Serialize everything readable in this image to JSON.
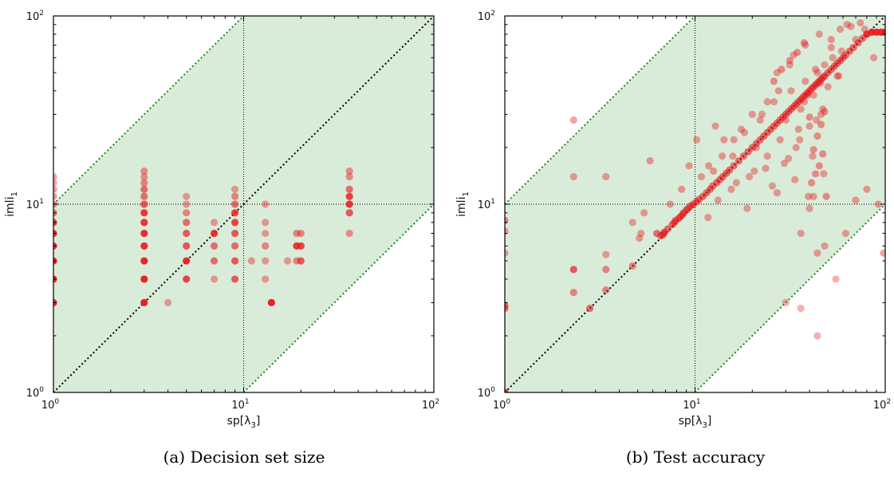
{
  "chart_data": [
    {
      "type": "scatter",
      "caption": "(a) Decision set size",
      "xlabel": "sp[λ3]",
      "ylabel": "imli1",
      "xscale": "log",
      "yscale": "log",
      "xlim": [
        1,
        100
      ],
      "ylim": [
        1,
        100
      ],
      "xticks": [
        "10",
        "10",
        "10"
      ],
      "xtick_exp": [
        "0",
        "1",
        "2"
      ],
      "yticks": [
        "10",
        "10",
        "10"
      ],
      "ytick_exp": [
        "0",
        "1",
        "2"
      ],
      "point_color": "#e8191c",
      "band_color": "#d9ecd9",
      "band_edge_color": "#1a8a1a",
      "x": [
        1,
        1,
        1,
        1,
        1,
        1,
        1,
        1,
        1,
        1,
        1,
        1,
        3,
        3,
        3,
        3,
        3,
        3,
        3,
        3,
        3,
        3,
        3,
        3,
        3,
        4,
        5,
        5,
        5,
        5,
        5,
        5,
        5,
        5,
        7,
        7,
        7,
        7,
        7,
        7,
        9,
        9,
        9,
        9,
        9,
        9,
        9,
        9,
        9,
        11,
        13,
        13,
        13,
        13,
        13,
        13,
        14,
        17,
        19,
        19,
        19,
        19,
        20,
        20,
        20,
        36,
        36,
        36,
        36,
        36,
        36,
        36
      ],
      "y": [
        3,
        4,
        5,
        6,
        7,
        8,
        9,
        10,
        11,
        12,
        13,
        14,
        3,
        4,
        5,
        6,
        7,
        8,
        9,
        10,
        11,
        12,
        13,
        14,
        15,
        3,
        4,
        5,
        6,
        7,
        8,
        9,
        10,
        11,
        4,
        5,
        6,
        7,
        8,
        7,
        4,
        5,
        6,
        7,
        8,
        9,
        10,
        11,
        12,
        5,
        4,
        5,
        6,
        7,
        8,
        10,
        3,
        5,
        5,
        6,
        7,
        6,
        5,
        6,
        7,
        7,
        9,
        10,
        11,
        12,
        14,
        15
      ],
      "alpha": [
        0.95,
        0.95,
        0.95,
        0.9,
        0.9,
        0.85,
        0.6,
        0.5,
        0.45,
        0.45,
        0.4,
        0.4,
        0.95,
        0.95,
        0.95,
        0.9,
        0.9,
        0.85,
        0.85,
        0.7,
        0.6,
        0.6,
        0.5,
        0.45,
        0.45,
        0.4,
        0.8,
        0.9,
        0.7,
        0.7,
        0.6,
        0.5,
        0.4,
        0.4,
        0.4,
        0.6,
        0.6,
        0.5,
        0.4,
        0.7,
        0.7,
        0.7,
        0.6,
        0.7,
        0.8,
        0.8,
        0.6,
        0.5,
        0.4,
        0.4,
        0.4,
        0.4,
        0.5,
        0.4,
        0.4,
        0.4,
        0.95,
        0.4,
        0.5,
        0.7,
        0.5,
        0.5,
        0.7,
        0.8,
        0.5,
        0.45,
        0.7,
        0.85,
        0.8,
        0.6,
        0.45,
        0.45
      ]
    },
    {
      "type": "scatter",
      "caption": "(b) Test accuracy",
      "xlabel": "sp[λ3]",
      "ylabel": "imli1",
      "xscale": "log",
      "yscale": "log",
      "xlim": [
        1,
        100
      ],
      "ylim": [
        1,
        100
      ],
      "xticks": [
        "10",
        "10",
        "10"
      ],
      "xtick_exp": [
        "0",
        "1",
        "2"
      ],
      "yticks": [
        "10",
        "10",
        "10"
      ],
      "ytick_exp": [
        "0",
        "1",
        "2"
      ],
      "point_color": "#e8191c",
      "band_color": "#d9ecd9",
      "band_edge_color": "#1a8a1a",
      "x": [
        1,
        1,
        1,
        1,
        1,
        1,
        2.3,
        2.3,
        2.3,
        2.3,
        2.8,
        3.4,
        3.4,
        3.4,
        3.4,
        4.7,
        4.7,
        5.1,
        5.2,
        5.4,
        6.3,
        6.6,
        6.8,
        6.9,
        7.2,
        7.6,
        7.8,
        7.9,
        8.2,
        8.4,
        8.6,
        8.7,
        9.0,
        9.2,
        9.5,
        9.8,
        10.2,
        10.5,
        11.0,
        11.5,
        12.0,
        12.4,
        13.0,
        13.5,
        14.0,
        14.6,
        15.2,
        16.0,
        17.0,
        18.0,
        19.0,
        20.0,
        21.0,
        22.0,
        23.0,
        24.0,
        25.0,
        26.0,
        27.0,
        28.0,
        29.0,
        30.0,
        31.0,
        32.0,
        33.0,
        34.0,
        35.0,
        36.0,
        37.0,
        38.0,
        39.0,
        40.0,
        41.0,
        42.0,
        43.0,
        44.0,
        45.0,
        46.0,
        47.0,
        48.0,
        50.0,
        52.0,
        54.0,
        56.0,
        58.0,
        60.0,
        62.0,
        65.0,
        68.0,
        72.0,
        76.0,
        80.0,
        85.0,
        90.0,
        95.0,
        100.0,
        11.8,
        12.5,
        14.2,
        15.8,
        17.5,
        19.3,
        21.0,
        22.5,
        24.0,
        26.0,
        28.0,
        30.0,
        32.0,
        34.0,
        36.0,
        38.0,
        40.0,
        42.0,
        44.0,
        46.0,
        48.0,
        50.0,
        53.0,
        56.0,
        59.0,
        8.5,
        9.3,
        10.8,
        12.8,
        13.9,
        16.5,
        18.2,
        20.5,
        22.0,
        25.5,
        27.5,
        29.5,
        31.5,
        33.5,
        35.5,
        37.5,
        39.5,
        41.5,
        43.5,
        45.5,
        47.5,
        5.8,
        7.4,
        10.2,
        11.7,
        13.2,
        15.5,
        18.8,
        23.5,
        27.0,
        31.0,
        35.0,
        39.0,
        43.0,
        47.0,
        52.0,
        57.0,
        63.0,
        70.0,
        78.0,
        87.0,
        36.0,
        42.0,
        44.0,
        48.0,
        40.0,
        30.0,
        36.0,
        44.0,
        55.0,
        62.0,
        70.0,
        80.0,
        92.0,
        98.0,
        16.0,
        20.0,
        24.0,
        27.0,
        33.0,
        38.0,
        45.0,
        52.0,
        58.0,
        66.0,
        74.0,
        41.0,
        43.0,
        45.0,
        47.0,
        49.0,
        42.0,
        44.0,
        46.0,
        48.0,
        40.0,
        26.0,
        28.5,
        31.5,
        34.5,
        37.5
      ],
      "y": [
        1,
        2.8,
        2.9,
        5.5,
        7.2,
        8.2,
        4.5,
        3.4,
        14,
        28,
        2.8,
        3.5,
        4.5,
        5.4,
        14,
        4.7,
        8.0,
        6.6,
        7.0,
        9.0,
        7.0,
        6.8,
        6.9,
        7.1,
        7.4,
        7.8,
        8.0,
        8.2,
        8.4,
        8.6,
        8.8,
        9.0,
        9.3,
        9.5,
        9.8,
        10.0,
        10.3,
        10.6,
        11.0,
        11.5,
        12.0,
        12.5,
        13.0,
        13.5,
        14.0,
        14.6,
        15.2,
        16.0,
        17.0,
        18.0,
        19.0,
        20.0,
        21.0,
        22.0,
        23.0,
        24.0,
        25.0,
        26.0,
        27.0,
        28.0,
        29.0,
        30.0,
        31.0,
        32.0,
        33.0,
        34.0,
        35.0,
        36.0,
        37.0,
        38.0,
        39.0,
        40.0,
        41.0,
        42.0,
        43.0,
        44.0,
        45.0,
        46.0,
        47.0,
        48.0,
        50.0,
        52.0,
        54.0,
        56.0,
        58.0,
        60.0,
        62.0,
        65.0,
        68.0,
        72.0,
        76.0,
        80.0,
        82.0,
        82.0,
        82.0,
        82.0,
        16.0,
        15.0,
        22.0,
        18.0,
        25.0,
        14.0,
        20.0,
        30.0,
        18.0,
        35.0,
        22.0,
        28.0,
        40.0,
        20.0,
        32.0,
        45.0,
        26.0,
        38.0,
        50.0,
        30.0,
        55.0,
        42.0,
        60.0,
        48.0,
        65.0,
        12.0,
        16.0,
        14.0,
        26.0,
        18.0,
        13.0,
        24.0,
        15.0,
        28.0,
        12.5,
        40.0,
        16.5,
        55.0,
        13.5,
        22.0,
        35.0,
        11.0,
        18.0,
        28.0,
        44.0,
        14.5,
        17.0,
        10.0,
        22.0,
        8.5,
        10.5,
        12.0,
        9.5,
        15.5,
        11.5,
        17.5,
        25.0,
        38.0,
        52.0,
        32.0,
        68.0,
        48.0,
        90.0,
        75.0,
        85.0,
        60.0,
        7.0,
        11.0,
        5.5,
        6.0,
        9.5,
        3.0,
        2.8,
        2.0,
        4.0,
        7.0,
        10.5,
        12.0,
        10.0,
        5.5,
        22.0,
        30.0,
        35.0,
        50.0,
        62.0,
        70.0,
        80.0,
        75.0,
        85.0,
        88.0,
        92.0,
        13.0,
        14.5,
        16.0,
        18.5,
        11.0,
        19.5,
        23.0,
        26.5,
        31.0,
        29.0,
        45.0,
        52.0,
        58.0,
        64.0,
        72.0
      ],
      "alpha": [
        0.9,
        0.6,
        0.6,
        0.4,
        0.4,
        0.5,
        0.7,
        0.5,
        0.4,
        0.4,
        0.6,
        0.5,
        0.5,
        0.4,
        0.4,
        0.5,
        0.4,
        0.4,
        0.4,
        0.4,
        0.6,
        0.6,
        0.7,
        0.7,
        0.6,
        0.6,
        0.6,
        0.6,
        0.6,
        0.6,
        0.6,
        0.6,
        0.6,
        0.6,
        0.6,
        0.6,
        0.6,
        0.6,
        0.6,
        0.6,
        0.6,
        0.6,
        0.6,
        0.6,
        0.6,
        0.6,
        0.6,
        0.6,
        0.6,
        0.6,
        0.6,
        0.6,
        0.6,
        0.6,
        0.6,
        0.6,
        0.6,
        0.6,
        0.6,
        0.6,
        0.6,
        0.6,
        0.6,
        0.6,
        0.6,
        0.6,
        0.6,
        0.6,
        0.6,
        0.6,
        0.6,
        0.6,
        0.6,
        0.6,
        0.6,
        0.6,
        0.6,
        0.6,
        0.6,
        0.6,
        0.6,
        0.6,
        0.6,
        0.6,
        0.6,
        0.6,
        0.6,
        0.6,
        0.6,
        0.6,
        0.6,
        0.9,
        0.9,
        0.9,
        0.9,
        0.9,
        0.4,
        0.4,
        0.4,
        0.4,
        0.4,
        0.4,
        0.4,
        0.4,
        0.4,
        0.4,
        0.4,
        0.4,
        0.4,
        0.4,
        0.4,
        0.4,
        0.4,
        0.4,
        0.4,
        0.4,
        0.4,
        0.4,
        0.4,
        0.4,
        0.4,
        0.4,
        0.4,
        0.4,
        0.4,
        0.4,
        0.4,
        0.4,
        0.4,
        0.4,
        0.4,
        0.4,
        0.4,
        0.4,
        0.4,
        0.4,
        0.4,
        0.4,
        0.4,
        0.4,
        0.4,
        0.4,
        0.4,
        0.4,
        0.4,
        0.4,
        0.4,
        0.4,
        0.4,
        0.4,
        0.4,
        0.4,
        0.4,
        0.4,
        0.4,
        0.4,
        0.4,
        0.4,
        0.4,
        0.4,
        0.4,
        0.4,
        0.4,
        0.4,
        0.4,
        0.4,
        0.4,
        0.35,
        0.35,
        0.35,
        0.35,
        0.4,
        0.4,
        0.4,
        0.4,
        0.4,
        0.4,
        0.4,
        0.4,
        0.4,
        0.4,
        0.4,
        0.4,
        0.4,
        0.4,
        0.4,
        0.4,
        0.45,
        0.45,
        0.45,
        0.45,
        0.45,
        0.45,
        0.45,
        0.45,
        0.45,
        0.45,
        0.45,
        0.45,
        0.45,
        0.45,
        0.45
      ]
    }
  ]
}
